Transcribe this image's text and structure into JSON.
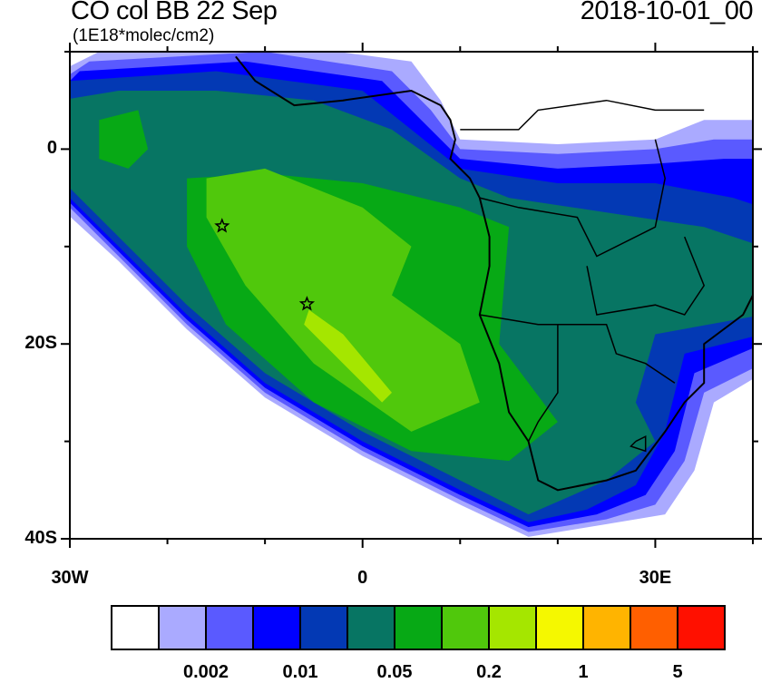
{
  "title": "CO col BB 22 Sep",
  "units": "(1E18*molec/cm2)",
  "date": "2018-10-01_00",
  "map": {
    "lon_range": [
      -30,
      40
    ],
    "lat_range": [
      -40,
      10
    ],
    "lat_labels": [
      {
        "lat": 0,
        "text": "0"
      },
      {
        "lat": -20,
        "text": "20S"
      },
      {
        "lat": -40,
        "text": "40S"
      }
    ],
    "lon_labels": [
      {
        "lon": -30,
        "text": "30W"
      },
      {
        "lon": 0,
        "text": "0"
      },
      {
        "lon": 30,
        "text": "30E"
      }
    ],
    "markers": [
      {
        "name": "ascension-star",
        "lon": -14.4,
        "lat": -7.9
      },
      {
        "name": "st-helena-star",
        "lon": -5.7,
        "lat": -15.9
      }
    ]
  },
  "colorbar": {
    "colors": [
      "#ffffff",
      "#aaaaff",
      "#5a5aff",
      "#0000ff",
      "#0339b4",
      "#077563",
      "#07a915",
      "#50c80c",
      "#a5e600",
      "#f5f800",
      "#ffb400",
      "#ff5f00",
      "#ff1000"
    ],
    "labels": [
      "0.002",
      "0.01",
      "0.05",
      "0.2",
      "1",
      "5"
    ]
  }
}
